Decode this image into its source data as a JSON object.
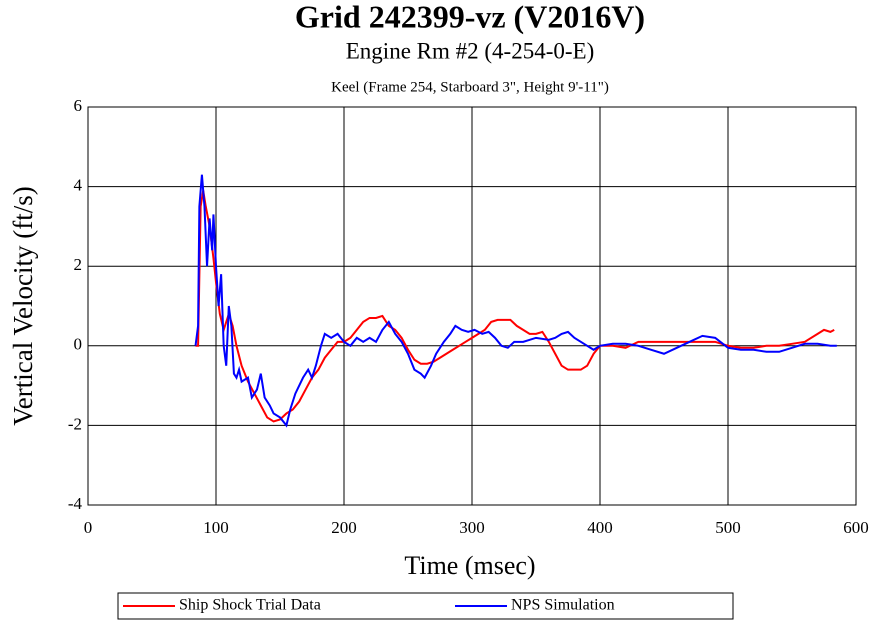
{
  "chart_data": {
    "type": "line",
    "title": "Grid 242399-vz (V2016V)",
    "subtitle": "Engine Rm #2 (4-254-0-E)",
    "subsubtitle": "Keel (Frame 254, Starboard 3\", Height 9'-11\")",
    "xlabel": "Time (msec)",
    "ylabel": "Vertical Velocity (ft/s)",
    "xlim": [
      0,
      600
    ],
    "xticks": [
      0,
      100,
      200,
      300,
      400,
      500,
      600
    ],
    "ylim": [
      -4,
      6
    ],
    "yticks": [
      -4,
      -2,
      0,
      2,
      4,
      6
    ],
    "grid": true,
    "legend": "bottom",
    "series": [
      {
        "name": "Ship Shock Trial Data",
        "color": "#ff0000",
        "x": [
          84,
          86,
          88,
          90,
          92,
          95,
          98,
          100,
          103,
          106,
          110,
          113,
          116,
          120,
          125,
          130,
          135,
          140,
          145,
          150,
          155,
          160,
          165,
          170,
          175,
          180,
          185,
          190,
          195,
          200,
          205,
          210,
          215,
          220,
          225,
          230,
          235,
          240,
          245,
          250,
          255,
          260,
          265,
          270,
          275,
          280,
          285,
          290,
          295,
          300,
          305,
          310,
          315,
          320,
          325,
          330,
          335,
          340,
          345,
          350,
          355,
          360,
          365,
          370,
          375,
          380,
          385,
          390,
          395,
          400,
          410,
          420,
          430,
          440,
          450,
          460,
          470,
          480,
          490,
          500,
          510,
          520,
          530,
          540,
          550,
          560,
          570,
          575,
          580,
          583
        ],
        "values": [
          0,
          0,
          3.5,
          3.9,
          3.5,
          3,
          2.2,
          1.6,
          0.8,
          0.4,
          0.8,
          0.5,
          0,
          -0.5,
          -0.9,
          -1.2,
          -1.5,
          -1.8,
          -1.9,
          -1.85,
          -1.7,
          -1.6,
          -1.4,
          -1.1,
          -0.8,
          -0.6,
          -0.3,
          -0.1,
          0.1,
          0.1,
          0.2,
          0.4,
          0.6,
          0.7,
          0.7,
          0.75,
          0.5,
          0.4,
          0.2,
          -0.1,
          -0.35,
          -0.45,
          -0.45,
          -0.4,
          -0.3,
          -0.2,
          -0.1,
          0,
          0.1,
          0.2,
          0.3,
          0.4,
          0.6,
          0.65,
          0.65,
          0.65,
          0.5,
          0.4,
          0.3,
          0.3,
          0.35,
          0.1,
          -0.2,
          -0.5,
          -0.6,
          -0.6,
          -0.6,
          -0.5,
          -0.2,
          0,
          0,
          -0.05,
          0.1,
          0.1,
          0.1,
          0.1,
          0.1,
          0.1,
          0.1,
          0,
          -0.05,
          -0.05,
          0,
          0,
          0.05,
          0.1,
          0.3,
          0.4,
          0.35,
          0.4
        ]
      },
      {
        "name": "NPS Simulation",
        "color": "#0000ff",
        "x": [
          84,
          86,
          87,
          89,
          91,
          93,
          95,
          97,
          98,
          100,
          102,
          104,
          106,
          108,
          110,
          112,
          114,
          116,
          118,
          120,
          125,
          128,
          132,
          135,
          138,
          142,
          145,
          150,
          155,
          158,
          162,
          168,
          172,
          175,
          178,
          182,
          185,
          190,
          195,
          200,
          205,
          210,
          215,
          220,
          225,
          230,
          235,
          240,
          245,
          250,
          255,
          260,
          263,
          268,
          272,
          278,
          283,
          287,
          292,
          297,
          302,
          308,
          313,
          318,
          323,
          328,
          333,
          340,
          350,
          360,
          365,
          370,
          375,
          380,
          385,
          390,
          395,
          400,
          410,
          420,
          430,
          440,
          450,
          460,
          470,
          480,
          490,
          500,
          510,
          520,
          530,
          540,
          550,
          560,
          570,
          580,
          585
        ],
        "values": [
          0,
          0.5,
          3.5,
          4.3,
          3.5,
          2,
          3.2,
          2.4,
          3.3,
          2,
          1,
          1.8,
          0,
          -0.5,
          1,
          0.5,
          -0.7,
          -0.8,
          -0.6,
          -0.9,
          -0.8,
          -1.3,
          -1.1,
          -0.7,
          -1.3,
          -1.5,
          -1.7,
          -1.8,
          -2,
          -1.6,
          -1.2,
          -0.8,
          -0.6,
          -0.8,
          -0.5,
          0,
          0.3,
          0.2,
          0.3,
          0.1,
          0,
          0.2,
          0.1,
          0.2,
          0.1,
          0.4,
          0.6,
          0.3,
          0.1,
          -0.2,
          -0.6,
          -0.7,
          -0.8,
          -0.5,
          -0.2,
          0.1,
          0.3,
          0.5,
          0.4,
          0.35,
          0.4,
          0.3,
          0.35,
          0.2,
          0,
          -0.05,
          0.1,
          0.1,
          0.2,
          0.15,
          0.2,
          0.3,
          0.35,
          0.2,
          0.1,
          0,
          -0.1,
          0,
          0.05,
          0.05,
          0,
          -0.1,
          -0.2,
          -0.05,
          0.1,
          0.25,
          0.2,
          -0.05,
          -0.1,
          -0.1,
          -0.15,
          -0.15,
          -0.05,
          0.05,
          0.05,
          0,
          0
        ]
      }
    ]
  }
}
